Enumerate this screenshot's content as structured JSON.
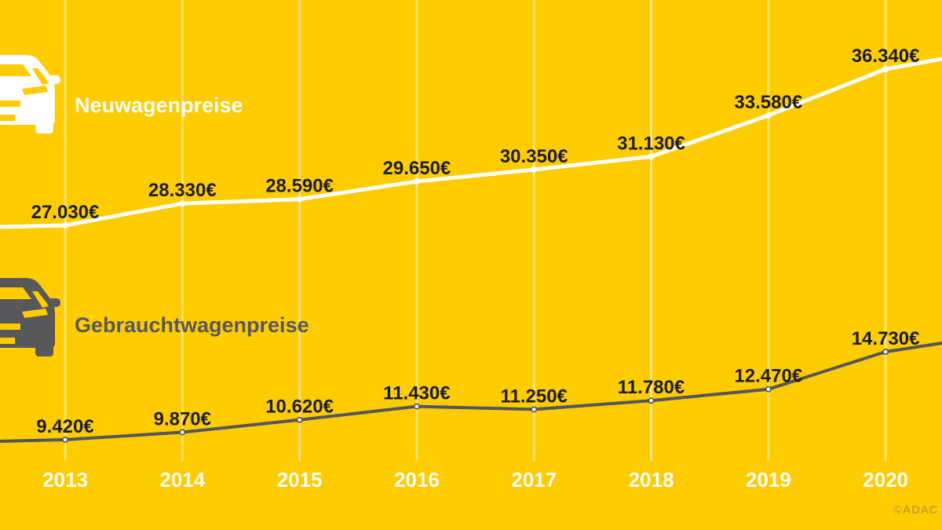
{
  "page": {
    "background_color": "#FFCC00",
    "watermark": "©ADAC"
  },
  "legend": {
    "new_cars": {
      "label": "Neuwagenpreise",
      "color": "#FFFFFF"
    },
    "used_cars": {
      "label": "Gebrauchtwagenpreise",
      "color": "#58585A"
    }
  },
  "chart_data": {
    "type": "line",
    "categories": [
      "2013",
      "2014",
      "2015",
      "2016",
      "2017",
      "2018",
      "2019",
      "2020"
    ],
    "series": [
      {
        "name": "Neuwagenpreise",
        "color": "#FFFFFF",
        "values": [
          27030,
          28330,
          28590,
          29650,
          30350,
          31130,
          33580,
          36340
        ],
        "labels": [
          "27.030€",
          "28.330€",
          "28.590€",
          "29.650€",
          "30.350€",
          "31.130€",
          "33.580€",
          "36.340€"
        ]
      },
      {
        "name": "Gebrauchtwagenpreise",
        "color": "#55555A",
        "values": [
          9420,
          9870,
          10620,
          11430,
          11250,
          11780,
          12470,
          14730
        ],
        "labels": [
          "9.420€",
          "9.870€",
          "10.620€",
          "11.430€",
          "11.250€",
          "11.780€",
          "12.470€",
          "14.730€"
        ]
      }
    ],
    "title": "",
    "xlabel": "",
    "ylabel": "",
    "grid": "vertical year gridlines, no horizontal axis lines",
    "legend_position": "inline-left",
    "value_label_color": "#1D1D1B",
    "year_label_color": "#FFFFFF",
    "gridline_color": "rgba(255,255,255,0.45)"
  }
}
